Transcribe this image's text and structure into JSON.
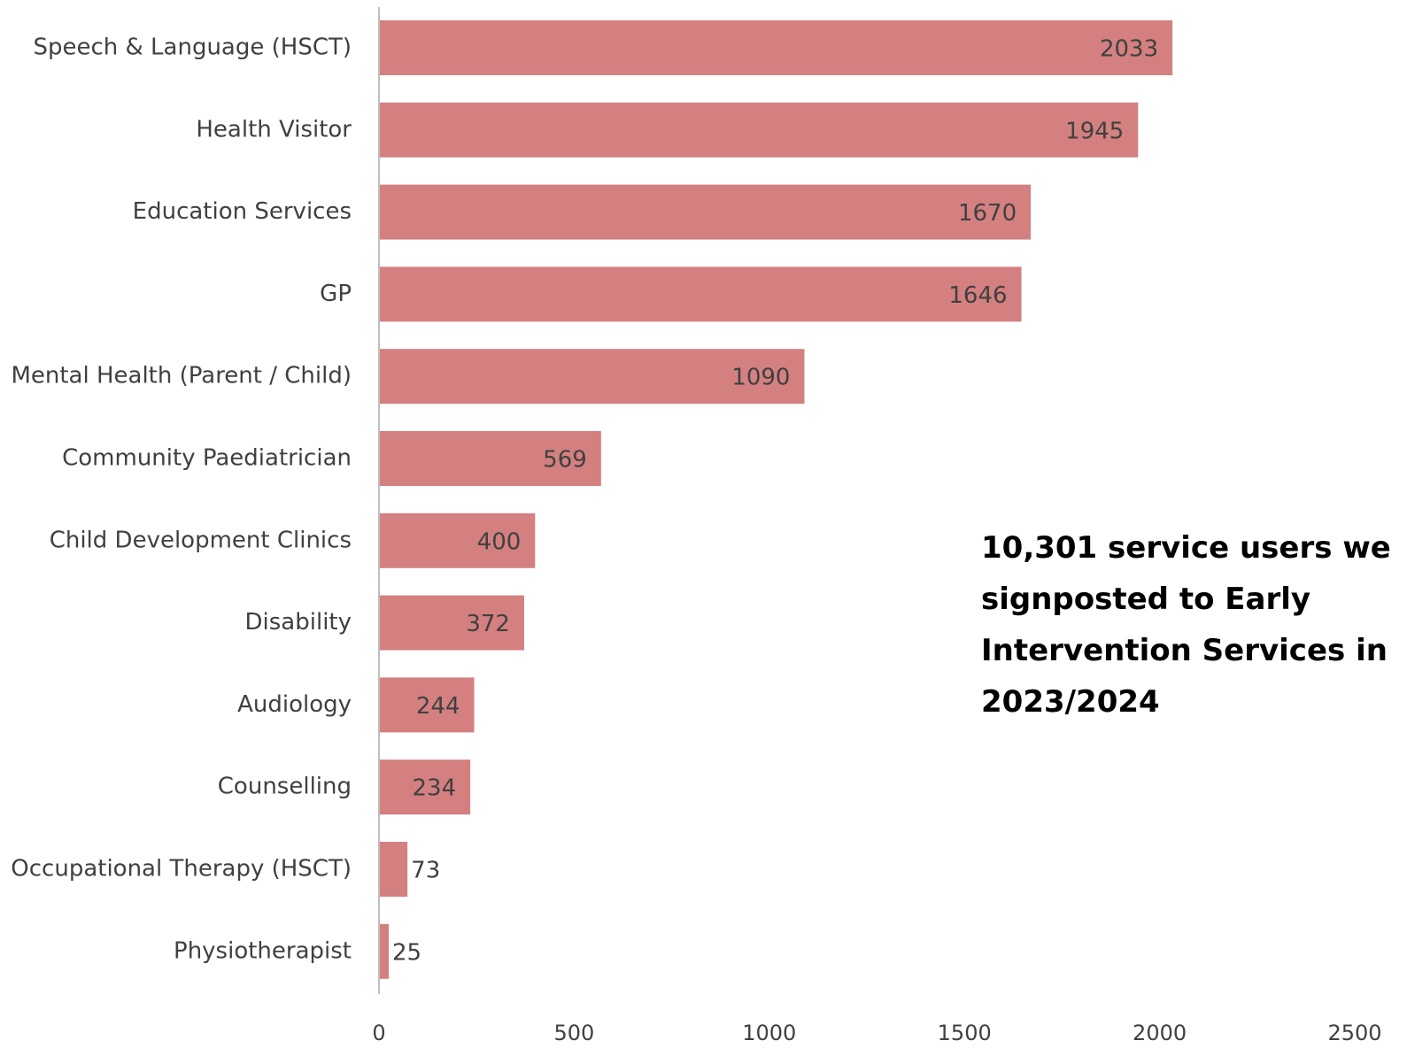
{
  "chart_data": {
    "type": "bar",
    "orientation": "horizontal",
    "categories": [
      "Speech & Language (HSCT)",
      "Health Visitor",
      "Education Services",
      "GP",
      "Mental Health (Parent / Child)",
      "Community Paediatrician",
      "Child Development Clinics",
      "Disability",
      "Audiology",
      "Counselling",
      "Occupational Therapy (HSCT)",
      "Physiotherapist"
    ],
    "values": [
      2033,
      1945,
      1670,
      1646,
      1090,
      569,
      400,
      372,
      244,
      234,
      73,
      25
    ],
    "xlim": [
      0,
      2500
    ],
    "xticks": [
      "0",
      "500",
      "1000",
      "1500",
      "2000",
      "2500"
    ],
    "title": "",
    "xlabel": "",
    "ylabel": "",
    "grid": false,
    "bar_color": "#d48080",
    "annotation": "10,301 service users we\nsignposted to Early\nIntervention Services in\n2023/2024"
  }
}
